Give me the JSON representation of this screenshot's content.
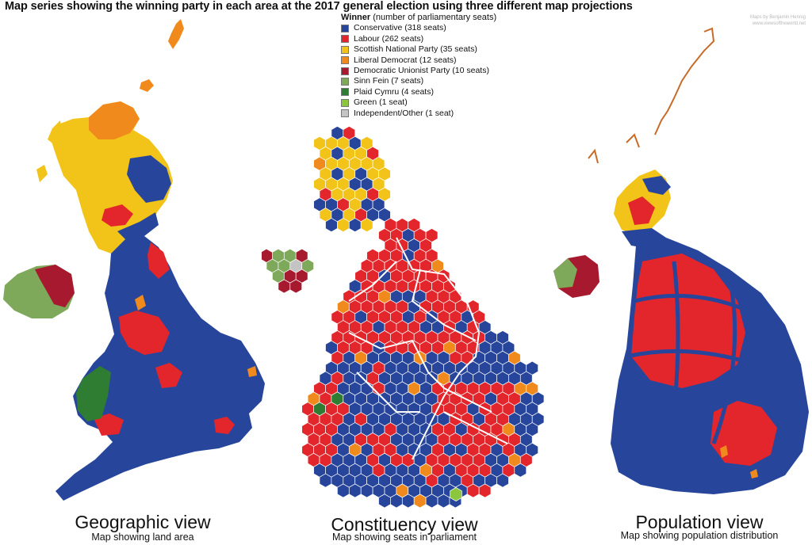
{
  "title": "Map series showing the winning party in each area at the 2017 general election using three different map projections",
  "credit": {
    "line1": "Maps by Benjamin Hennig",
    "line2": "www.viewsoftheworld.net"
  },
  "legend": {
    "heading_bold": "Winner",
    "heading_rest": " (number of parliamentary seats)",
    "items": [
      {
        "label": "Conservative (318 seats)",
        "color": "#27469b"
      },
      {
        "label": "Labour (262 seats)",
        "color": "#e3262b"
      },
      {
        "label": "Scottish National Party (35 seats)",
        "color": "#f2c318"
      },
      {
        "label": "Liberal Democrat (12 seats)",
        "color": "#f08a1c"
      },
      {
        "label": "Democratic Unionist Party (10 seats)",
        "color": "#a6192e"
      },
      {
        "label": "Sinn Fein (7 seats)",
        "color": "#7fa95a"
      },
      {
        "label": "Plaid Cymru (4 seats)",
        "color": "#2e7d32"
      },
      {
        "label": "Green (1 seat)",
        "color": "#8cc63f"
      },
      {
        "label": "Independent/Other (1 seat)",
        "color": "#c4c4c4"
      }
    ]
  },
  "views": [
    {
      "title": "Geographic view",
      "subtitle": "Map showing land area"
    },
    {
      "title": "Constituency view",
      "subtitle": "Map showing seats in parliament"
    },
    {
      "title": "Population view",
      "subtitle": "Map showing population distribution"
    }
  ]
}
